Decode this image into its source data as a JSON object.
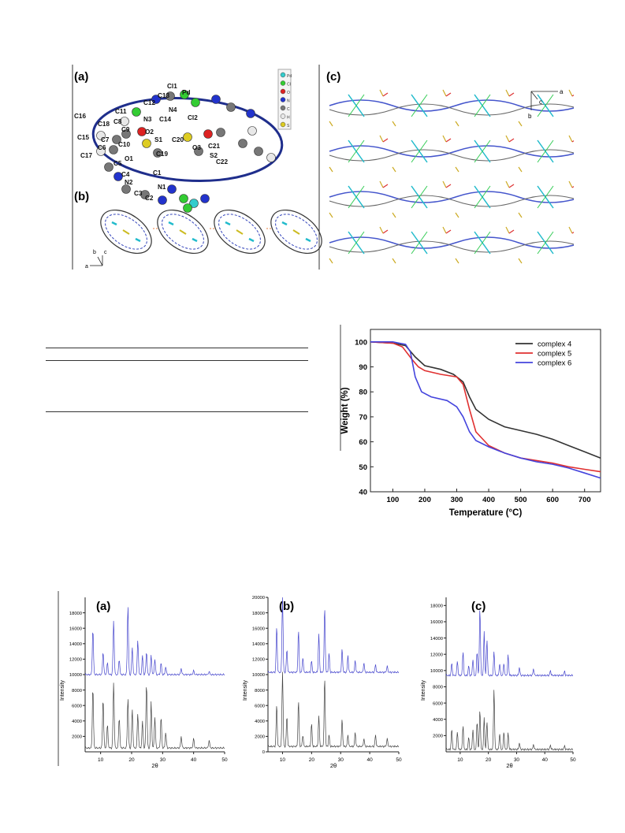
{
  "crystal_figure": {
    "panel_a": {
      "label": "(a)",
      "atoms": [
        "Cl1",
        "Pd",
        "C13",
        "C12",
        "N4",
        "Cl2",
        "C11",
        "N3",
        "C14",
        "C16",
        "C18",
        "C8",
        "C9",
        "O2",
        "S1",
        "C20",
        "C15",
        "C7",
        "C10",
        "O3",
        "C21",
        "C6",
        "C19",
        "S2",
        "C22",
        "C17",
        "O1",
        "C5",
        "C4",
        "C1",
        "N2",
        "N1",
        "C3",
        "C2"
      ],
      "legend": [
        "Pd",
        "Cl",
        "O",
        "N",
        "C",
        "H",
        "S"
      ],
      "legend_colors": [
        "#33cccc",
        "#33cc33",
        "#dd2222",
        "#2233cc",
        "#777777",
        "#e8e8e8",
        "#ddcc22"
      ]
    },
    "panel_b": {
      "label": "(b)",
      "axes": [
        "b",
        "c",
        "a"
      ]
    },
    "panel_c": {
      "label": "(c)",
      "axes": [
        "a",
        "c",
        "b"
      ]
    }
  },
  "tga_chart": {
    "chart_data": {
      "type": "line",
      "xlabel": "Temperature (°C)",
      "ylabel": "Weight (%)",
      "xlim": [
        30,
        750
      ],
      "ylim": [
        40,
        105
      ],
      "xticks": [
        100,
        200,
        300,
        400,
        500,
        600,
        700
      ],
      "yticks": [
        40,
        50,
        60,
        70,
        80,
        90,
        100
      ],
      "legend_position": "top-right",
      "series": [
        {
          "name": "complex 4",
          "color": "#333333",
          "x": [
            30,
            100,
            140,
            170,
            200,
            250,
            290,
            320,
            340,
            360,
            400,
            450,
            500,
            550,
            600,
            650,
            700,
            750
          ],
          "y": [
            100,
            99.5,
            98.5,
            94,
            90.5,
            89,
            87,
            84,
            78,
            73,
            69,
            66,
            64.5,
            63,
            61,
            58.5,
            56,
            53.5
          ]
        },
        {
          "name": "complex 5",
          "color": "#e03030",
          "x": [
            30,
            100,
            130,
            160,
            180,
            200,
            250,
            300,
            320,
            340,
            360,
            400,
            450,
            500,
            550,
            600,
            650,
            700,
            750
          ],
          "y": [
            100,
            99.5,
            98,
            93,
            90,
            88.5,
            87,
            86,
            83,
            73,
            64,
            58.5,
            55.5,
            53.5,
            52.5,
            51.5,
            50,
            49,
            48
          ]
        },
        {
          "name": "complex 6",
          "color": "#4444dd",
          "x": [
            30,
            100,
            140,
            155,
            170,
            190,
            220,
            270,
            300,
            320,
            340,
            360,
            400,
            450,
            500,
            550,
            600,
            650,
            700,
            750
          ],
          "y": [
            100,
            100,
            99,
            96,
            86,
            80,
            78,
            76.5,
            74,
            70,
            64,
            60.5,
            58,
            55.5,
            53.5,
            52,
            51,
            49.5,
            47.5,
            45.5
          ]
        }
      ]
    }
  },
  "pxrd_chart": {
    "chart_data": [
      {
        "type": "line",
        "label": "(a)",
        "xlabel": "2θ",
        "ylabel": "Intensity",
        "xlim": [
          5,
          50
        ],
        "ylim": [
          0,
          20000
        ],
        "xticks": [
          10,
          20,
          30,
          40,
          50
        ],
        "yticks": [
          2000,
          4000,
          6000,
          8000,
          10000,
          12000,
          14000,
          16000,
          18000
        ],
        "series": [
          {
            "color": "#4444cc",
            "baseline": 10000,
            "peaks": [
              [
                7.5,
                6000
              ],
              [
                10.8,
                3000
              ],
              [
                12.2,
                1500
              ],
              [
                14.2,
                7000
              ],
              [
                16,
                2000
              ],
              [
                18.8,
                9000
              ],
              [
                20.2,
                3500
              ],
              [
                22,
                4500
              ],
              [
                23.5,
                2500
              ],
              [
                24.8,
                3000
              ],
              [
                26.3,
                2500
              ],
              [
                27.5,
                2000
              ],
              [
                29.5,
                1500
              ],
              [
                31,
                1000
              ],
              [
                36,
                800
              ],
              [
                40,
                500
              ],
              [
                45,
                400
              ]
            ]
          },
          {
            "color": "#444444",
            "baseline": 500,
            "peaks": [
              [
                7.5,
                8000
              ],
              [
                10.8,
                6500
              ],
              [
                12.2,
                3000
              ],
              [
                14.2,
                8500
              ],
              [
                16,
                4000
              ],
              [
                18.8,
                6500
              ],
              [
                20.2,
                5000
              ],
              [
                22,
                4500
              ],
              [
                23.5,
                3500
              ],
              [
                24.8,
                8500
              ],
              [
                26.3,
                6000
              ],
              [
                27.5,
                4000
              ],
              [
                29.5,
                4000
              ],
              [
                31,
                2000
              ],
              [
                36,
                1500
              ],
              [
                40,
                1200
              ],
              [
                45,
                1000
              ]
            ]
          }
        ]
      },
      {
        "type": "line",
        "label": "(b)",
        "xlabel": "2θ",
        "ylabel": "Intensity",
        "xlim": [
          5,
          50
        ],
        "ylim": [
          0,
          20000
        ],
        "xticks": [
          10,
          20,
          30,
          40,
          50
        ],
        "yticks": [
          0,
          2000,
          4000,
          6000,
          8000,
          10000,
          12000,
          14000,
          16000,
          18000,
          20000
        ],
        "series": [
          {
            "color": "#4444cc",
            "baseline": 10300,
            "peaks": [
              [
                8,
                6000
              ],
              [
                10,
                10000
              ],
              [
                11.5,
                3000
              ],
              [
                15.5,
                5500
              ],
              [
                17,
                2000
              ],
              [
                20,
                1500
              ],
              [
                22.5,
                5000
              ],
              [
                24.5,
                8500
              ],
              [
                26,
                2500
              ],
              [
                30.5,
                3000
              ],
              [
                32.5,
                2200
              ],
              [
                35,
                1500
              ],
              [
                38,
                1200
              ],
              [
                42,
                1000
              ],
              [
                46,
                800
              ]
            ]
          },
          {
            "color": "#444444",
            "baseline": 700,
            "peaks": [
              [
                8,
                5500
              ],
              [
                10,
                9800
              ],
              [
                11.5,
                4000
              ],
              [
                15.5,
                6000
              ],
              [
                17,
                1500
              ],
              [
                20,
                3000
              ],
              [
                22.5,
                4000
              ],
              [
                24.5,
                9000
              ],
              [
                26,
                1500
              ],
              [
                30.5,
                3500
              ],
              [
                32.5,
                1500
              ],
              [
                35,
                1800
              ],
              [
                38,
                1000
              ],
              [
                42,
                1500
              ],
              [
                46,
                1000
              ]
            ]
          }
        ]
      },
      {
        "type": "line",
        "label": "(c)",
        "xlabel": "2θ",
        "ylabel": "Intensity",
        "xlim": [
          5,
          50
        ],
        "ylim": [
          0,
          19000
        ],
        "xticks": [
          10,
          20,
          30,
          40,
          50
        ],
        "yticks": [
          2000,
          4000,
          6000,
          8000,
          10000,
          12000,
          14000,
          16000,
          18000
        ],
        "series": [
          {
            "color": "#4444cc",
            "baseline": 9400,
            "peaks": [
              [
                7,
                1500
              ],
              [
                9,
                1800
              ],
              [
                11,
                3000
              ],
              [
                13,
                1200
              ],
              [
                14.5,
                2000
              ],
              [
                16,
                3000
              ],
              [
                17,
                8500
              ],
              [
                18.5,
                5500
              ],
              [
                19.5,
                4500
              ],
              [
                22,
                3000
              ],
              [
                24,
                1500
              ],
              [
                25.5,
                1500
              ],
              [
                27,
                2500
              ],
              [
                31,
                1000
              ],
              [
                36,
                800
              ],
              [
                42,
                600
              ],
              [
                47,
                500
              ]
            ]
          },
          {
            "color": "#444444",
            "baseline": 300,
            "peaks": [
              [
                7,
                2500
              ],
              [
                9,
                2200
              ],
              [
                11,
                3000
              ],
              [
                13,
                1500
              ],
              [
                14.5,
                2500
              ],
              [
                16,
                3500
              ],
              [
                17,
                5000
              ],
              [
                18.5,
                4000
              ],
              [
                19.5,
                3500
              ],
              [
                22,
                7500
              ],
              [
                24,
                2000
              ],
              [
                25.5,
                2200
              ],
              [
                27,
                2000
              ],
              [
                31,
                800
              ],
              [
                36,
                600
              ],
              [
                42,
                500
              ],
              [
                47,
                400
              ]
            ]
          }
        ]
      }
    ]
  }
}
